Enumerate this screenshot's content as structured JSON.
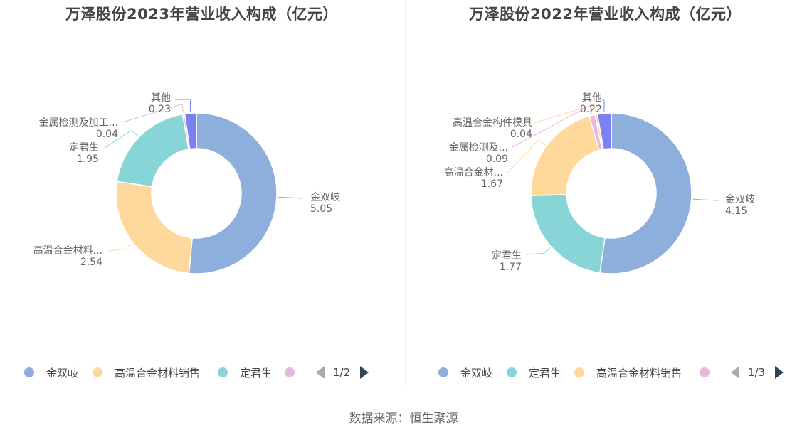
{
  "footer": {
    "source": "数据来源：恒生聚源"
  },
  "charts": [
    {
      "title": "万泽股份2023年营业收入构成（亿元）",
      "legend": {
        "items": [
          {
            "label": "金双岐",
            "color": "#8eaedb"
          },
          {
            "label": "高温合金材料销售",
            "color": "#ffd89c"
          },
          {
            "label": "定君生",
            "color": "#88d5d8"
          },
          {
            "label": "",
            "color": "#e6b8da"
          }
        ],
        "page": "1/2"
      }
    },
    {
      "title": "万泽股份2022年营业收入构成（亿元）",
      "legend": {
        "items": [
          {
            "label": "金双岐",
            "color": "#8eaedb"
          },
          {
            "label": "定君生",
            "color": "#88d5d8"
          },
          {
            "label": "高温合金材料销售",
            "color": "#ffd89c"
          },
          {
            "label": "",
            "color": "#e6b8da"
          }
        ],
        "page": "1/3"
      }
    }
  ],
  "chart_data": [
    {
      "type": "pie",
      "title": "万泽股份2023年营业收入构成（亿元）",
      "unit": "亿元",
      "donut": true,
      "slices": [
        {
          "name": "金双岐",
          "label": "金双岐",
          "value": 5.05,
          "color": "#8eaedb"
        },
        {
          "name": "高温合金材料销售",
          "label": "高温合金材料...",
          "value": 2.54,
          "color": "#ffd89c"
        },
        {
          "name": "定君生",
          "label": "定君生",
          "value": 1.95,
          "color": "#88d5d8"
        },
        {
          "name": "金属检测及加工",
          "label": "金属检测及加工...",
          "value": 0.04,
          "color": "#e6b8da"
        },
        {
          "name": "其他",
          "label": "其他",
          "value": 0.23,
          "color": "#7b80f2"
        }
      ],
      "legend_position": "bottom"
    },
    {
      "type": "pie",
      "title": "万泽股份2022年营业收入构成（亿元）",
      "unit": "亿元",
      "donut": true,
      "slices": [
        {
          "name": "金双岐",
          "label": "金双岐",
          "value": 4.15,
          "color": "#8eaedb"
        },
        {
          "name": "定君生",
          "label": "定君生",
          "value": 1.77,
          "color": "#88d5d8"
        },
        {
          "name": "高温合金材料销售",
          "label": "高温合金材...",
          "value": 1.67,
          "color": "#ffd89c"
        },
        {
          "name": "金属检测及加工",
          "label": "金属检测及...",
          "value": 0.09,
          "color": "#e6b8da"
        },
        {
          "name": "高温合金构件模具",
          "label": "高温合金构件模具",
          "value": 0.04,
          "color": "#ffd89c"
        },
        {
          "name": "其他",
          "label": "其他",
          "value": 0.22,
          "color": "#7b80f2"
        }
      ],
      "legend_position": "bottom"
    }
  ]
}
